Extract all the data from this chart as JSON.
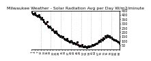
{
  "title": "Milwaukee Weather - Solar Radiation Avg per Day W/m2/minute",
  "line_color": "#dd0000",
  "point_color": "#000000",
  "background_color": "#ffffff",
  "grid_color": "#aaaaaa",
  "ylim": [
    0,
    450
  ],
  "yticks": [
    50,
    100,
    150,
    200,
    250,
    300,
    350,
    400,
    450
  ],
  "ytick_labels": [
    "50",
    "100",
    "150",
    "200",
    "250",
    "300",
    "350",
    "400",
    "450"
  ],
  "y_values": [
    430,
    415,
    405,
    420,
    400,
    395,
    385,
    400,
    375,
    355,
    370,
    345,
    320,
    305,
    295,
    320,
    275,
    260,
    265,
    248,
    225,
    238,
    215,
    198,
    215,
    190,
    172,
    168,
    152,
    158,
    138,
    145,
    128,
    118,
    108,
    125,
    102,
    92,
    88,
    104,
    82,
    72,
    78,
    68,
    62,
    85,
    58,
    42,
    48,
    38,
    58,
    32,
    28,
    42,
    32,
    22,
    38,
    28,
    42,
    38,
    52,
    48,
    58,
    62,
    72,
    68,
    82,
    105,
    92,
    118,
    108,
    135,
    125,
    155,
    142,
    165,
    148,
    158,
    138,
    142,
    128,
    118,
    112,
    108,
    98,
    92,
    82,
    72
  ],
  "vgrid_positions": [
    10,
    20,
    30,
    40,
    50,
    60,
    70,
    80
  ],
  "num_points": 88,
  "title_fontsize": 4.5,
  "tick_fontsize": 3.5,
  "linewidth": 0.7,
  "markersize": 1.2,
  "dash_on": 2.5,
  "dash_off": 1.5
}
